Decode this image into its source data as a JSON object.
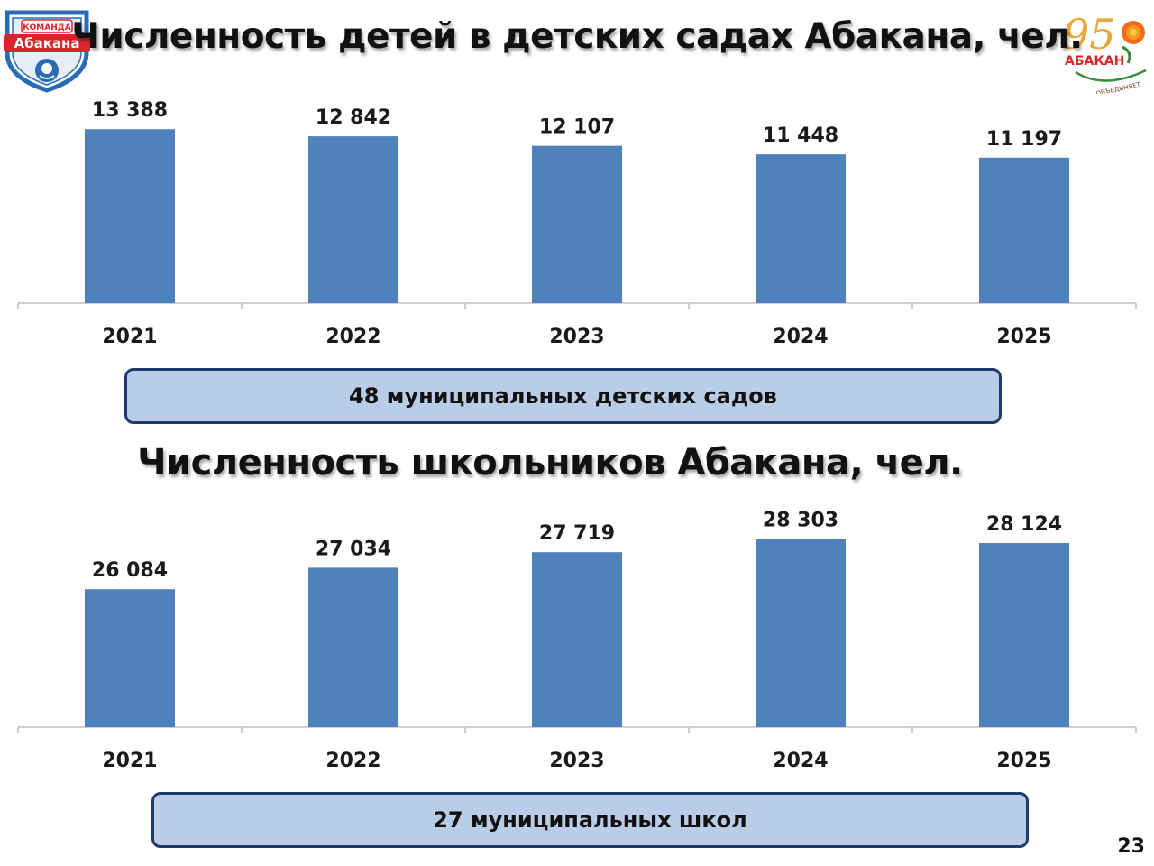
{
  "logo_left": {
    "line1": "КОМАНДА",
    "line2": "Абакана"
  },
  "logo_right": {
    "number": "95",
    "city": "АБАКАН",
    "slogan": "ОБЪЕДИНЯЕТ"
  },
  "page_number": "23",
  "colors": {
    "bar": "#4f81bd",
    "box_fill": "#b9cde6",
    "box_border": "#1f3a6b",
    "axis": "#bfbfbf"
  },
  "chart_data": [
    {
      "type": "bar",
      "title": "Численность детей в детских садах Абакана, чел.",
      "categories": [
        "2021",
        "2022",
        "2023",
        "2024",
        "2025"
      ],
      "values": [
        13388,
        12842,
        12107,
        11448,
        11197
      ],
      "value_labels": [
        "13 388",
        "12 842",
        "12 107",
        "11 448",
        "11 197"
      ],
      "ylim": [
        0,
        15000
      ],
      "grid": false,
      "note": "48 муниципальных детских садов"
    },
    {
      "type": "bar",
      "title": "Численность школьников Абакана, чел.",
      "categories": [
        "2021",
        "2022",
        "2023",
        "2024",
        "2025"
      ],
      "values": [
        26084,
        27034,
        27719,
        28303,
        28124
      ],
      "value_labels": [
        "26 084",
        "27 034",
        "27 719",
        "28 303",
        "28 124"
      ],
      "ylim": [
        20000,
        29000
      ],
      "grid": false,
      "note": "27 муниципальных школ"
    }
  ]
}
